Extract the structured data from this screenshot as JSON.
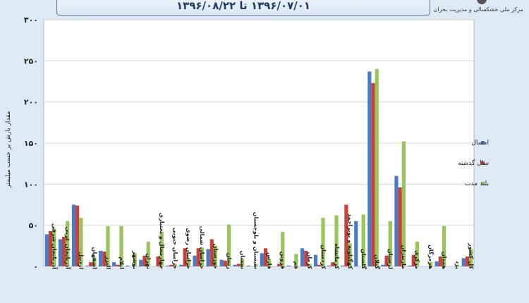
{
  "header": {
    "date_range": "۱۳۹۶/۰۷/۰۱ تا ۱۳۹۶/۰۸/۲۲",
    "organization": "مرکز ملی خشکسالی و مدیریت بحران"
  },
  "colors": {
    "series1": "#4a7bc8",
    "series2": "#c9413b",
    "series3": "#98c45a"
  },
  "chart_data": {
    "type": "bar",
    "title": "",
    "ylabel": "مقدار بارش بر حسب میلیمتر",
    "xlabel": "",
    "ylim": [
      0,
      300
    ],
    "yticks": [
      0,
      50,
      100,
      150,
      200,
      250,
      300
    ],
    "ytick_labels": [
      "۰",
      "۵۰",
      "۱۰۰",
      "۱۵۰",
      "۲۰۰",
      "۲۵۰",
      "۳۰۰"
    ],
    "grid": true,
    "legend_position": "right",
    "categories": [
      "آذربایجان شرقی",
      "آذربایجان غربی",
      "اردبیل",
      "اصفهان",
      "البرز",
      "ایلام",
      "بوشهر",
      "تهران",
      "چهارمحال و بختیاری",
      "خراسان جنوبی",
      "خراسان رضوی",
      "خراسان شمالی",
      "خوزستان",
      "زنجان",
      "سمنان",
      "سیستان و بلوچستان",
      "فارس",
      "قزوین",
      "قم",
      "کرمان",
      "کردستان",
      "کرمانشاه",
      "کهگیلویه و بویراحمد",
      "گلستان",
      "گیلان",
      "لرستان",
      "مازندران",
      "مرکزی",
      "هرمزگان",
      "همدان",
      "یزد",
      "کل کشور"
    ],
    "series": [
      {
        "name": "امسال",
        "values": [
          39,
          33,
          75,
          1,
          19,
          5,
          1,
          8,
          0,
          1,
          2,
          13,
          21,
          8,
          2,
          1,
          16,
          0,
          1,
          22,
          14,
          1,
          1,
          55,
          237,
          2,
          110,
          1,
          0,
          6,
          0,
          10
        ]
      },
      {
        "name": "سال گذشته",
        "values": [
          43,
          36,
          74,
          5,
          18,
          2,
          0,
          13,
          12,
          2,
          22,
          22,
          33,
          7,
          3,
          0,
          22,
          3,
          0,
          19,
          2,
          5,
          75,
          0,
          223,
          13,
          96,
          14,
          0,
          12,
          0,
          12
        ]
      },
      {
        "name": "بلند مدت",
        "values": [
          46,
          55,
          59,
          11,
          49,
          49,
          16,
          30,
          42,
          3,
          10,
          23,
          25,
          51,
          9,
          3,
          9,
          42,
          15,
          3,
          59,
          62,
          28,
          63,
          240,
          55,
          152,
          30,
          5,
          49,
          2,
          21
        ]
      }
    ]
  }
}
